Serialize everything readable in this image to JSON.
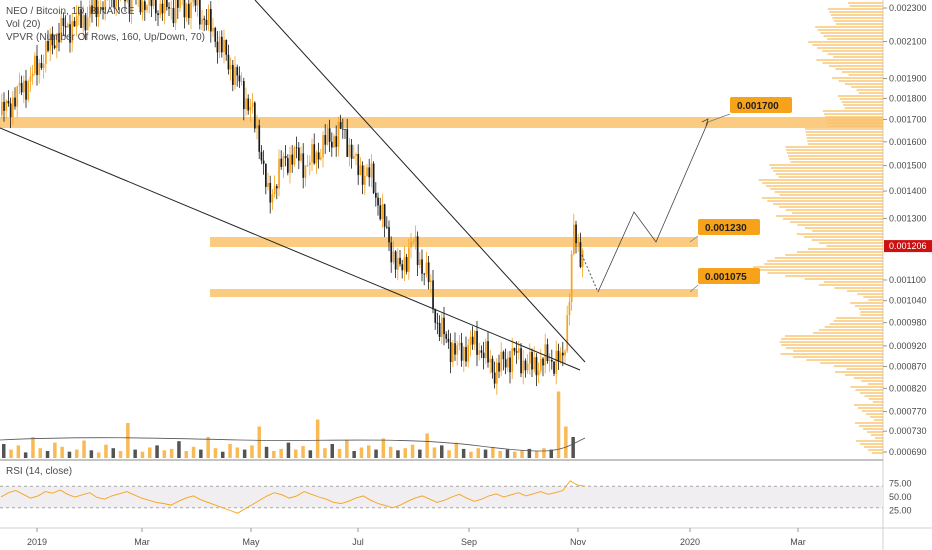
{
  "chart_data": [
    {
      "type": "candlestick",
      "legend": {
        "symbol_line": "NEO / Bitcoin, 1D, BINANCE",
        "vol_line": "Vol (20)",
        "vpvr_line": "VPVR (Number Of Rows, 160, Up/Down, 70)"
      },
      "x_ticks": [
        "2019",
        "Mar",
        "May",
        "Jul",
        "Sep",
        "Nov",
        "2020",
        "Mar"
      ],
      "y_ticks": [
        "0.002300",
        "0.002100",
        "0.001900",
        "0.001800",
        "0.001700",
        "0.001600",
        "0.001500",
        "0.001400",
        "0.001300",
        "0.001100",
        "0.001040",
        "0.000980",
        "0.000920",
        "0.000870",
        "0.000820",
        "0.000770",
        "0.000730",
        "0.000690"
      ],
      "y_scale": "log",
      "current_price": "0.001206",
      "level_labels": [
        "0.001700",
        "0.001230",
        "0.001075"
      ],
      "colors": {
        "up": "#f7a21b",
        "down": "#1a1a1a",
        "zone": "#f9c26b",
        "label_bg": "#f7a21b",
        "price_tag": "#cc1111",
        "vpvr": "#f7a21b"
      },
      "price_path": [
        [
          "2018-12-20",
          0.00172
        ],
        [
          "2019-01-05",
          0.0019
        ],
        [
          "2019-01-20",
          0.00215
        ],
        [
          "2019-02-05",
          0.00225
        ],
        [
          "2019-02-20",
          0.0024
        ],
        [
          "2019-03-05",
          0.00235
        ],
        [
          "2019-03-20",
          0.0023
        ],
        [
          "2019-04-05",
          0.00232
        ],
        [
          "2019-04-15",
          0.00215
        ],
        [
          "2019-04-25",
          0.00195
        ],
        [
          "2019-05-05",
          0.00175
        ],
        [
          "2019-05-10",
          0.0016
        ],
        [
          "2019-05-15",
          0.00135
        ],
        [
          "2019-05-20",
          0.00148
        ],
        [
          "2019-05-28",
          0.00155
        ],
        [
          "2019-06-05",
          0.0015
        ],
        [
          "2019-06-15",
          0.0016
        ],
        [
          "2019-06-25",
          0.00165
        ],
        [
          "2019-07-01",
          0.0015
        ],
        [
          "2019-07-10",
          0.00145
        ],
        [
          "2019-07-18",
          0.00125
        ],
        [
          "2019-07-25",
          0.00112
        ],
        [
          "2019-08-01",
          0.00122
        ],
        [
          "2019-08-10",
          0.0011
        ],
        [
          "2019-08-15",
          0.00097
        ],
        [
          "2019-08-25",
          0.0009
        ],
        [
          "2019-09-05",
          0.00093
        ],
        [
          "2019-09-15",
          0.00086
        ],
        [
          "2019-09-25",
          0.0009
        ],
        [
          "2019-10-05",
          0.00087
        ],
        [
          "2019-10-15",
          0.00089
        ],
        [
          "2019-10-22",
          0.00088
        ],
        [
          "2019-10-25",
          0.00102
        ],
        [
          "2019-10-28",
          0.00125
        ],
        [
          "2019-10-31",
          0.00118
        ],
        [
          "2019-11-02",
          0.0012
        ]
      ],
      "volume": [
        0.2,
        0.12,
        0.18,
        0.08,
        0.3,
        0.14,
        0.1,
        0.22,
        0.16,
        0.09,
        0.12,
        0.25,
        0.11,
        0.08,
        0.19,
        0.14,
        0.1,
        0.5,
        0.12,
        0.09,
        0.15,
        0.18,
        0.11,
        0.13,
        0.24,
        0.1,
        0.16,
        0.12,
        0.3,
        0.14,
        0.09,
        0.2,
        0.15,
        0.12,
        0.18,
        0.45,
        0.16,
        0.1,
        0.13,
        0.22,
        0.12,
        0.17,
        0.11,
        0.55,
        0.14,
        0.2,
        0.13,
        0.25,
        0.1,
        0.15,
        0.18,
        0.12,
        0.28,
        0.16,
        0.11,
        0.14,
        0.19,
        0.12,
        0.35,
        0.15,
        0.18,
        0.11,
        0.22,
        0.13,
        0.09,
        0.14,
        0.12,
        0.16,
        0.1,
        0.12,
        0.09,
        0.11,
        0.13,
        0.1,
        0.14,
        0.12,
        0.95,
        0.45,
        0.3
      ]
    },
    {
      "type": "line",
      "title": "RSI (14, close)",
      "y_ticks": [
        "75.00",
        "50.00",
        "25.00"
      ],
      "ylim": [
        0,
        100
      ],
      "band": [
        30,
        70
      ],
      "values": [
        50,
        58,
        62,
        55,
        48,
        52,
        60,
        57,
        63,
        55,
        50,
        54,
        58,
        49,
        46,
        52,
        56,
        60,
        54,
        48,
        44,
        40,
        38,
        35,
        42,
        48,
        52,
        45,
        40,
        35,
        30,
        25,
        20,
        28,
        36,
        44,
        52,
        58,
        54,
        48,
        52,
        60,
        55,
        50,
        46,
        40,
        38,
        42,
        48,
        52,
        44,
        38,
        34,
        30,
        35,
        42,
        48,
        52,
        46,
        40,
        44,
        50,
        55,
        48,
        42,
        46,
        52,
        56,
        50,
        54,
        58,
        52,
        56,
        60,
        55,
        58,
        62,
        80,
        72,
        70
      ]
    }
  ]
}
